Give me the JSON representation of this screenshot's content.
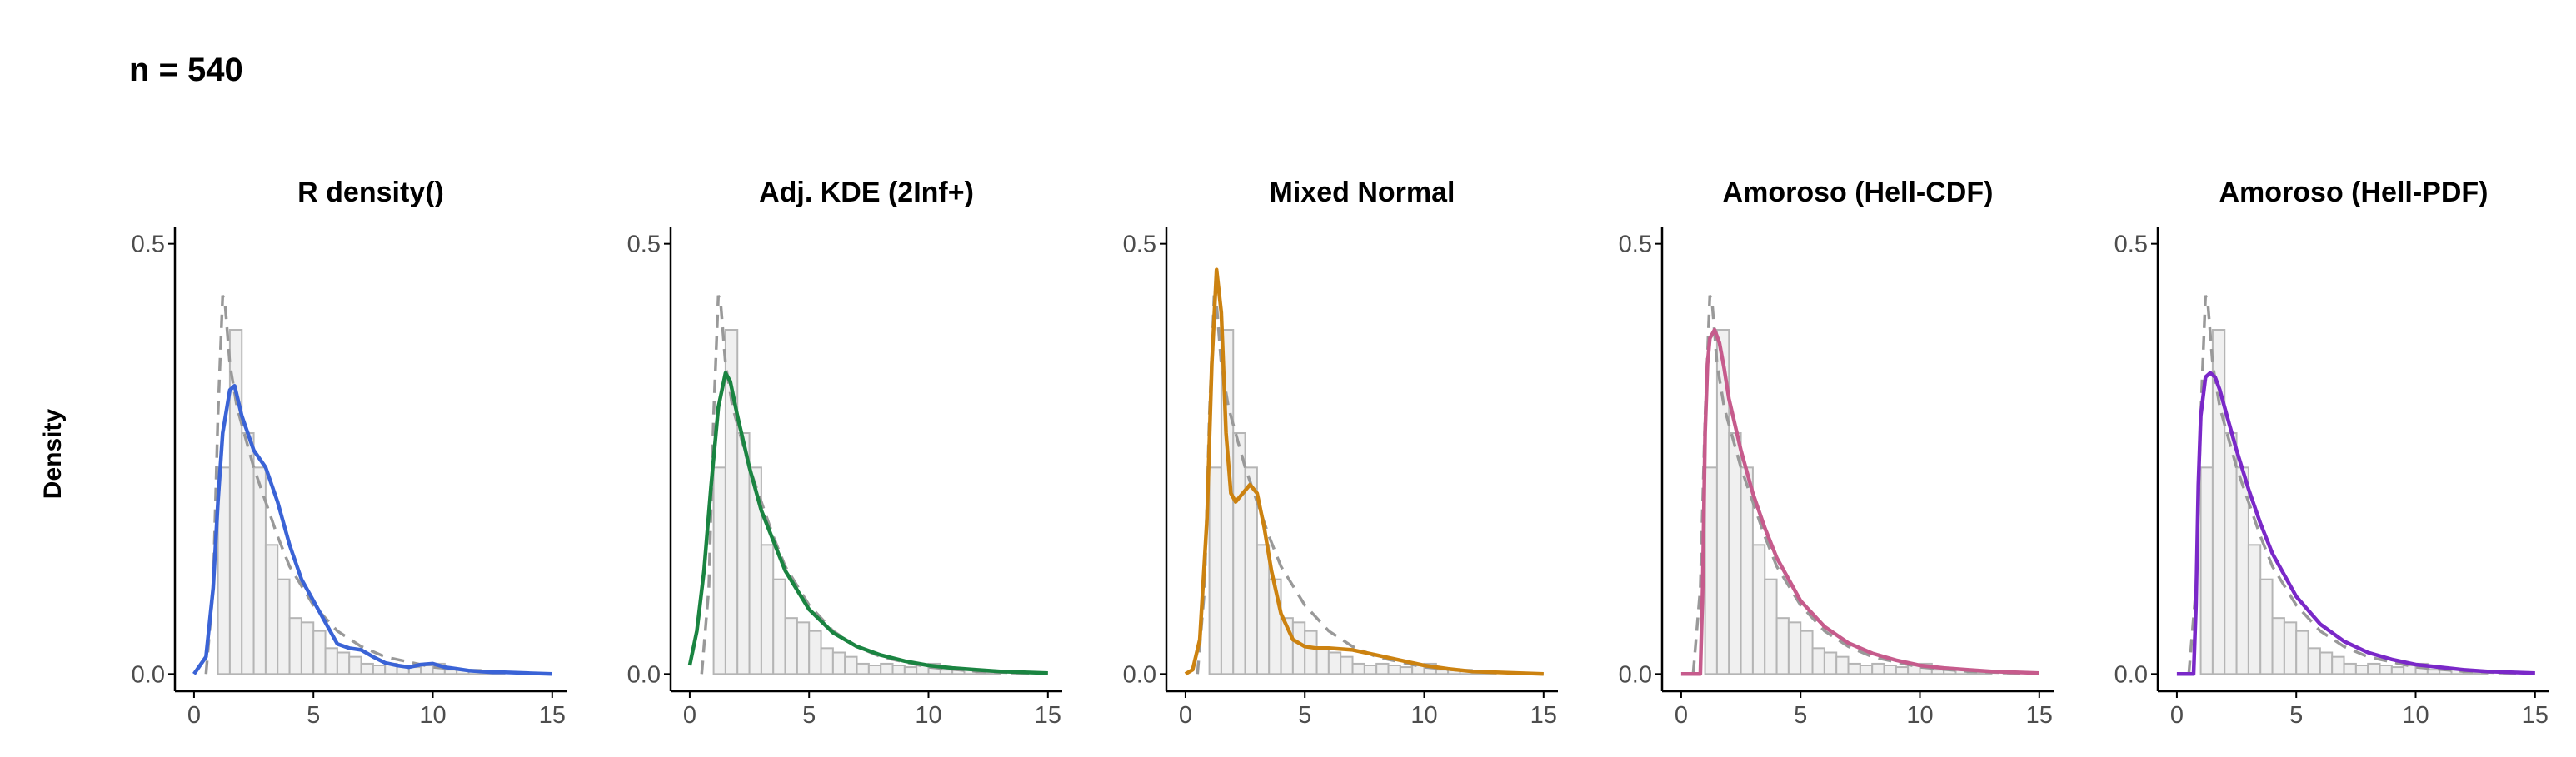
{
  "title": "n = 540",
  "ylabel": "Density",
  "colors": {
    "histogram_fill": "#f0f0f0",
    "histogram_edge": "#b5b5b5",
    "reference_dashed": "#999999",
    "axis": "#000000",
    "tick_text": "#4d4d4d"
  },
  "chart_data": [
    {
      "type": "line",
      "title": "R density()",
      "color": "#3a63d6",
      "xlim": [
        -0.8,
        15.6
      ],
      "ylim": [
        -0.02,
        0.52
      ],
      "x_ticks": [
        0,
        5,
        10,
        15
      ],
      "y_ticks": [
        0.0,
        0.5
      ],
      "histogram": {
        "bin_width": 0.5,
        "bin_start": 0.5,
        "heights": [
          0.0,
          0.24,
          0.4,
          0.28,
          0.24,
          0.15,
          0.11,
          0.065,
          0.06,
          0.05,
          0.03,
          0.025,
          0.02,
          0.012,
          0.01,
          0.012,
          0.01,
          0.008,
          0.01,
          0.012,
          0.005,
          0.005,
          0.005,
          0.002,
          0.002,
          0.0,
          0.002,
          0.0,
          0.0
        ]
      },
      "reference_curve": {
        "style": "dashed",
        "x": [
          0.5,
          0.8,
          1.0,
          1.2,
          1.3,
          1.5,
          1.8,
          2.0,
          2.5,
          3.0,
          3.5,
          4.0,
          5.0,
          6.0,
          7.0,
          8.0,
          10.0,
          12.0,
          15.0
        ],
        "y": [
          0.0,
          0.1,
          0.3,
          0.44,
          0.43,
          0.36,
          0.31,
          0.29,
          0.24,
          0.2,
          0.16,
          0.125,
          0.08,
          0.05,
          0.032,
          0.02,
          0.008,
          0.003,
          0.0
        ]
      },
      "fitted_curve": {
        "x": [
          0.0,
          0.5,
          0.8,
          1.0,
          1.2,
          1.5,
          1.7,
          2.0,
          2.5,
          3.0,
          3.5,
          4.0,
          4.5,
          5.0,
          5.5,
          6.0,
          6.5,
          7.0,
          7.5,
          8.0,
          8.5,
          9.0,
          9.5,
          10.0,
          10.5,
          11.0,
          11.5,
          12.0,
          12.5,
          13.0,
          14.0,
          15.0
        ],
        "y": [
          0.0,
          0.02,
          0.1,
          0.2,
          0.28,
          0.33,
          0.335,
          0.3,
          0.26,
          0.24,
          0.2,
          0.15,
          0.11,
          0.085,
          0.06,
          0.035,
          0.03,
          0.028,
          0.02,
          0.013,
          0.01,
          0.008,
          0.011,
          0.012,
          0.008,
          0.006,
          0.004,
          0.003,
          0.002,
          0.002,
          0.001,
          0.0
        ]
      }
    },
    {
      "type": "line",
      "title": "Adj. KDE (2Inf+)",
      "color": "#1a8441",
      "xlim": [
        -0.8,
        15.6
      ],
      "ylim": [
        -0.02,
        0.52
      ],
      "x_ticks": [
        0,
        5,
        10,
        15
      ],
      "y_ticks": [
        0.0,
        0.5
      ],
      "histogram": {
        "bin_width": 0.5,
        "bin_start": 0.5,
        "heights": [
          0.0,
          0.24,
          0.4,
          0.28,
          0.24,
          0.15,
          0.11,
          0.065,
          0.06,
          0.05,
          0.03,
          0.025,
          0.02,
          0.012,
          0.01,
          0.012,
          0.01,
          0.008,
          0.01,
          0.012,
          0.005,
          0.005,
          0.005,
          0.002,
          0.002,
          0.0,
          0.002,
          0.0,
          0.0
        ]
      },
      "reference_curve": {
        "style": "dashed",
        "x": [
          0.5,
          0.8,
          1.0,
          1.2,
          1.3,
          1.5,
          1.8,
          2.0,
          2.5,
          3.0,
          3.5,
          4.0,
          5.0,
          6.0,
          7.0,
          8.0,
          10.0,
          12.0,
          15.0
        ],
        "y": [
          0.0,
          0.1,
          0.3,
          0.44,
          0.43,
          0.36,
          0.31,
          0.29,
          0.24,
          0.2,
          0.16,
          0.125,
          0.08,
          0.05,
          0.032,
          0.02,
          0.008,
          0.003,
          0.0
        ]
      },
      "fitted_curve": {
        "x": [
          0.0,
          0.3,
          0.6,
          0.9,
          1.2,
          1.5,
          1.7,
          2.0,
          2.5,
          3.0,
          3.5,
          4.0,
          5.0,
          6.0,
          7.0,
          8.0,
          9.0,
          10.0,
          11.0,
          12.0,
          13.0,
          14.0,
          15.0
        ],
        "y": [
          0.01,
          0.05,
          0.12,
          0.22,
          0.31,
          0.35,
          0.34,
          0.3,
          0.24,
          0.19,
          0.155,
          0.12,
          0.075,
          0.048,
          0.032,
          0.022,
          0.015,
          0.01,
          0.007,
          0.005,
          0.003,
          0.002,
          0.001
        ]
      }
    },
    {
      "type": "line",
      "title": "Mixed Normal",
      "color": "#cc8210",
      "xlim": [
        -0.8,
        15.6
      ],
      "ylim": [
        -0.02,
        0.52
      ],
      "x_ticks": [
        0,
        5,
        10,
        15
      ],
      "y_ticks": [
        0.0,
        0.5
      ],
      "histogram": {
        "bin_width": 0.5,
        "bin_start": 0.5,
        "heights": [
          0.0,
          0.24,
          0.4,
          0.28,
          0.24,
          0.15,
          0.11,
          0.065,
          0.06,
          0.05,
          0.03,
          0.025,
          0.02,
          0.012,
          0.01,
          0.012,
          0.01,
          0.008,
          0.01,
          0.012,
          0.005,
          0.005,
          0.005,
          0.002,
          0.002,
          0.0,
          0.002,
          0.0,
          0.0
        ]
      },
      "reference_curve": {
        "style": "dashed",
        "x": [
          0.5,
          0.8,
          1.0,
          1.2,
          1.3,
          1.5,
          1.8,
          2.0,
          2.5,
          3.0,
          3.5,
          4.0,
          5.0,
          6.0,
          7.0,
          8.0,
          10.0,
          12.0,
          15.0
        ],
        "y": [
          0.0,
          0.1,
          0.3,
          0.44,
          0.43,
          0.36,
          0.31,
          0.29,
          0.24,
          0.2,
          0.16,
          0.125,
          0.08,
          0.05,
          0.032,
          0.02,
          0.008,
          0.003,
          0.0
        ]
      },
      "fitted_curve": {
        "x": [
          0.0,
          0.3,
          0.6,
          0.9,
          1.1,
          1.3,
          1.5,
          1.7,
          1.9,
          2.1,
          2.4,
          2.7,
          3.0,
          3.3,
          3.6,
          4.0,
          4.5,
          5.0,
          5.5,
          6.0,
          7.0,
          8.0,
          9.0,
          10.0,
          11.0,
          12.0,
          13.0,
          14.0,
          15.0
        ],
        "y": [
          0.0,
          0.005,
          0.04,
          0.18,
          0.36,
          0.47,
          0.42,
          0.28,
          0.21,
          0.2,
          0.21,
          0.22,
          0.21,
          0.17,
          0.12,
          0.07,
          0.04,
          0.032,
          0.03,
          0.03,
          0.028,
          0.022,
          0.016,
          0.01,
          0.006,
          0.003,
          0.002,
          0.001,
          0.0
        ]
      }
    },
    {
      "type": "line",
      "title": "Amoroso (Hell-CDF)",
      "color": "#c65b8c",
      "xlim": [
        -0.8,
        15.6
      ],
      "ylim": [
        -0.02,
        0.52
      ],
      "x_ticks": [
        0,
        5,
        10,
        15
      ],
      "y_ticks": [
        0.0,
        0.5
      ],
      "histogram": {
        "bin_width": 0.5,
        "bin_start": 0.5,
        "heights": [
          0.0,
          0.24,
          0.4,
          0.28,
          0.24,
          0.15,
          0.11,
          0.065,
          0.06,
          0.05,
          0.03,
          0.025,
          0.02,
          0.012,
          0.01,
          0.012,
          0.01,
          0.008,
          0.01,
          0.012,
          0.005,
          0.005,
          0.005,
          0.002,
          0.002,
          0.0,
          0.002,
          0.0,
          0.0
        ]
      },
      "reference_curve": {
        "style": "dashed",
        "x": [
          0.5,
          0.8,
          1.0,
          1.2,
          1.3,
          1.5,
          1.8,
          2.0,
          2.5,
          3.0,
          3.5,
          4.0,
          5.0,
          6.0,
          7.0,
          8.0,
          10.0,
          12.0,
          15.0
        ],
        "y": [
          0.0,
          0.1,
          0.3,
          0.44,
          0.43,
          0.36,
          0.31,
          0.29,
          0.24,
          0.2,
          0.16,
          0.125,
          0.08,
          0.05,
          0.032,
          0.02,
          0.008,
          0.003,
          0.0
        ]
      },
      "fitted_curve": {
        "x": [
          0.0,
          0.5,
          0.8,
          0.9,
          1.0,
          1.1,
          1.2,
          1.4,
          1.6,
          1.8,
          2.0,
          2.5,
          3.0,
          3.5,
          4.0,
          5.0,
          6.0,
          7.0,
          8.0,
          9.0,
          10.0,
          11.0,
          12.0,
          13.0,
          14.0,
          15.0
        ],
        "y": [
          0.0,
          0.0,
          0.0,
          0.1,
          0.28,
          0.36,
          0.39,
          0.4,
          0.385,
          0.355,
          0.32,
          0.26,
          0.21,
          0.17,
          0.135,
          0.085,
          0.055,
          0.036,
          0.024,
          0.016,
          0.01,
          0.007,
          0.005,
          0.003,
          0.002,
          0.001
        ]
      }
    },
    {
      "type": "line",
      "title": "Amoroso (Hell-PDF)",
      "color": "#7a28c8",
      "xlim": [
        -0.8,
        15.6
      ],
      "ylim": [
        -0.02,
        0.52
      ],
      "x_ticks": [
        0,
        5,
        10,
        15
      ],
      "y_ticks": [
        0.0,
        0.5
      ],
      "histogram": {
        "bin_width": 0.5,
        "bin_start": 0.5,
        "heights": [
          0.0,
          0.24,
          0.4,
          0.28,
          0.24,
          0.15,
          0.11,
          0.065,
          0.06,
          0.05,
          0.03,
          0.025,
          0.02,
          0.012,
          0.01,
          0.012,
          0.01,
          0.008,
          0.01,
          0.012,
          0.005,
          0.005,
          0.005,
          0.002,
          0.002,
          0.0,
          0.002,
          0.0,
          0.0
        ]
      },
      "reference_curve": {
        "style": "dashed",
        "x": [
          0.5,
          0.8,
          1.0,
          1.2,
          1.3,
          1.5,
          1.8,
          2.0,
          2.5,
          3.0,
          3.5,
          4.0,
          5.0,
          6.0,
          7.0,
          8.0,
          10.0,
          12.0,
          15.0
        ],
        "y": [
          0.0,
          0.1,
          0.3,
          0.44,
          0.43,
          0.36,
          0.31,
          0.29,
          0.24,
          0.2,
          0.16,
          0.125,
          0.08,
          0.05,
          0.032,
          0.02,
          0.008,
          0.003,
          0.0
        ]
      },
      "fitted_curve": {
        "x": [
          0.0,
          0.5,
          0.7,
          0.8,
          0.9,
          1.0,
          1.2,
          1.4,
          1.6,
          1.8,
          2.0,
          2.5,
          3.0,
          3.5,
          4.0,
          5.0,
          6.0,
          7.0,
          8.0,
          9.0,
          10.0,
          11.0,
          12.0,
          13.0,
          14.0,
          15.0
        ],
        "y": [
          0.0,
          0.0,
          0.0,
          0.08,
          0.22,
          0.3,
          0.345,
          0.35,
          0.345,
          0.33,
          0.31,
          0.26,
          0.215,
          0.175,
          0.14,
          0.09,
          0.058,
          0.038,
          0.025,
          0.017,
          0.011,
          0.008,
          0.005,
          0.003,
          0.002,
          0.001
        ]
      }
    }
  ]
}
